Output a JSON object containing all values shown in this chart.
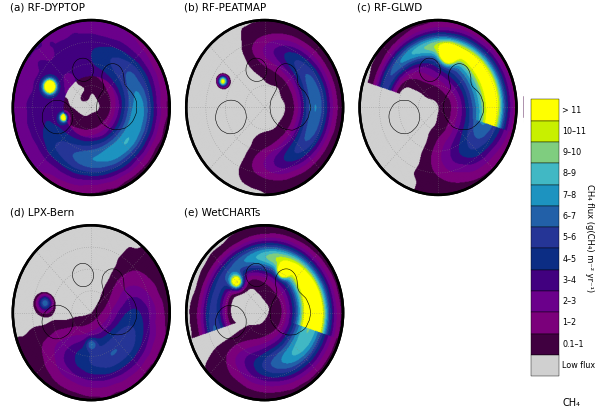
{
  "panels": [
    {
      "label": "(a) RF-DYPTOP"
    },
    {
      "label": "(b) RF-PEATMAP"
    },
    {
      "label": "(c) RF-GLWD"
    },
    {
      "label": "(d) LPX-Bern"
    },
    {
      "label": "(e) WetCHARTs"
    }
  ],
  "colorbar_labels": [
    "> 11",
    "10–11",
    "9–10",
    "8–9",
    "7–8",
    "6–7",
    "5–6",
    "4–5",
    "3–4",
    "2–3",
    "1–2",
    "0.1–1",
    "Low flux"
  ],
  "colorbar_colors": [
    "#ffff00",
    "#c8f000",
    "#7fcd7f",
    "#41b8c4",
    "#1d93c0",
    "#2260a8",
    "#253596",
    "#0c2d84",
    "#41007f",
    "#6b008b",
    "#7b007b",
    "#400040",
    "#d0d0d0"
  ],
  "cbar_ylabel": "CH₄ flux (g(CH₄) m⁻² yr⁻¹)",
  "bg_color": "#ffffff",
  "fig_width": 6.0,
  "fig_height": 4.16
}
